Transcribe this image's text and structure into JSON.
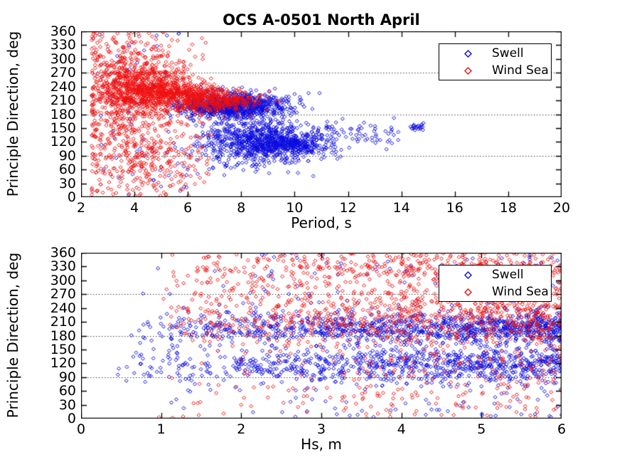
{
  "figure_title": "OCS A-0501 North April",
  "colors": {
    "swell": "#0b0be0",
    "wind_sea": "#f01010",
    "axis": "#000000",
    "grid": "#404040",
    "background": "#ffffff",
    "text": "#000000"
  },
  "legend": {
    "items": [
      {
        "label": "Swell",
        "series": "swell"
      },
      {
        "label": "Wind Sea",
        "series": "wind_sea"
      }
    ],
    "position": "upper-right"
  },
  "marker": {
    "shape": "open-diamond",
    "size": 5,
    "stroke_width": 1
  },
  "chart_data": [
    {
      "type": "scatter",
      "title": "OCS A-0501 North April",
      "xlabel": "Period, s",
      "ylabel": "Principle Direction, deg",
      "xlim": [
        2,
        20
      ],
      "ylim": [
        0,
        360
      ],
      "xticks": [
        2,
        4,
        6,
        8,
        10,
        12,
        14,
        16,
        18,
        20
      ],
      "yticks": [
        0,
        30,
        60,
        90,
        120,
        150,
        180,
        210,
        240,
        270,
        300,
        330,
        360
      ],
      "grid_y": [
        90,
        180,
        270
      ],
      "grid_style": "dotted",
      "legend": [
        "Swell",
        "Wind Sea"
      ],
      "series": [
        {
          "name": "Swell",
          "color_key": "swell",
          "clusters": [
            {
              "n": 850,
              "x": {
                "dist": "normal",
                "mean": 7.7,
                "sd": 1.0,
                "min": 5.2,
                "max": 10.8
              },
              "y": {
                "dist": "normal",
                "mean": 199,
                "sd": 13,
                "min": 2,
                "max": 358
              }
            },
            {
              "n": 620,
              "x": {
                "dist": "normal",
                "mean": 8.7,
                "sd": 1.1,
                "min": 6.0,
                "max": 11.8
              },
              "y": {
                "dist": "normal",
                "mean": 122,
                "sd": 23,
                "min": 2,
                "max": 358
              }
            },
            {
              "n": 300,
              "x": {
                "dist": "normal",
                "mean": 9.7,
                "sd": 0.9,
                "min": 7.5,
                "max": 12.2
              },
              "y": {
                "dist": "normal",
                "mean": 112,
                "sd": 13,
                "min": 2,
                "max": 358
              }
            },
            {
              "n": 200,
              "x": {
                "dist": "normal",
                "mean": 7.9,
                "sd": 1.2,
                "min": 5.5,
                "max": 11.0
              },
              "y": {
                "dist": "uniform",
                "min": 45,
                "max": 240
              }
            },
            {
              "n": 70,
              "x": {
                "dist": "uniform",
                "min": 10.8,
                "max": 13.9
              },
              "y": {
                "dist": "normal",
                "mean": 140,
                "sd": 13,
                "min": 60,
                "max": 240
              }
            },
            {
              "n": 22,
              "x": {
                "dist": "uniform",
                "min": 14.3,
                "max": 14.85
              },
              "y": {
                "dist": "normal",
                "mean": 152,
                "sd": 4,
                "min": 100,
                "max": 200
              }
            },
            {
              "n": 60,
              "x": {
                "dist": "uniform",
                "min": 2.6,
                "max": 6.0
              },
              "y": {
                "dist": "uniform",
                "min": 1,
                "max": 359
              }
            }
          ]
        },
        {
          "name": "Wind Sea",
          "color_key": "wind_sea",
          "clusters": [
            {
              "n": 420,
              "x": {
                "dist": "normal",
                "mean": 3.7,
                "sd": 0.7,
                "min": 2.4,
                "max": 6.2
              },
              "y": {
                "dist": "normal",
                "mean": 232,
                "sd": 48,
                "min": 2,
                "max": 358
              }
            },
            {
              "n": 560,
              "x": {
                "dist": "normal",
                "mean": 4.7,
                "sd": 0.8,
                "min": 2.6,
                "max": 7.2
              },
              "y": {
                "dist": "normal",
                "mean": 236,
                "sd": 24,
                "min": 2,
                "max": 358
              }
            },
            {
              "n": 360,
              "x": {
                "dist": "normal",
                "mean": 6.0,
                "sd": 0.9,
                "min": 3.6,
                "max": 8.8
              },
              "y": {
                "dist": "normal",
                "mean": 219,
                "sd": 15,
                "min": 2,
                "max": 358
              }
            },
            {
              "n": 240,
              "x": {
                "dist": "normal",
                "mean": 7.3,
                "sd": 0.9,
                "min": 5.2,
                "max": 9.6
              },
              "y": {
                "dist": "normal",
                "mean": 209,
                "sd": 11,
                "min": 2,
                "max": 358
              }
            },
            {
              "n": 450,
              "x": {
                "dist": "ramp",
                "min": 2.4,
                "max": 6.8,
                "power": 1.6
              },
              "y": {
                "dist": "uniform",
                "min": 1,
                "max": 359
              }
            },
            {
              "n": 190,
              "x": {
                "dist": "normal",
                "mean": 4.4,
                "sd": 1.0,
                "min": 2.5,
                "max": 7.0
              },
              "y": {
                "dist": "normal",
                "mean": 92,
                "sd": 38,
                "min": 2,
                "max": 358
              }
            }
          ]
        }
      ]
    },
    {
      "type": "scatter",
      "title": "",
      "xlabel": "Hs, m",
      "ylabel": "Principle Direction, deg",
      "xlim": [
        0,
        6
      ],
      "ylim": [
        0,
        360
      ],
      "xticks": [
        0,
        1,
        2,
        3,
        4,
        5,
        6
      ],
      "yticks": [
        0,
        30,
        60,
        90,
        120,
        150,
        180,
        210,
        240,
        270,
        300,
        330,
        360
      ],
      "grid_y": [
        90,
        180,
        270
      ],
      "grid_style": "dotted",
      "legend": [
        "Swell",
        "Wind Sea"
      ],
      "series": [
        {
          "name": "Swell",
          "color_key": "swell",
          "clusters": [
            {
              "n": 1000,
              "x": {
                "dist": "ramp",
                "min": 0.4,
                "max": 6.0,
                "power": 0.55
              },
              "y": {
                "dist": "normal",
                "mean": 196,
                "sd": 16,
                "min": 2,
                "max": 358
              }
            },
            {
              "n": 850,
              "x": {
                "dist": "ramp",
                "min": 0.4,
                "max": 6.0,
                "power": 0.55
              },
              "y": {
                "dist": "normal",
                "mean": 116,
                "sd": 21,
                "min": 2,
                "max": 358
              }
            },
            {
              "n": 300,
              "x": {
                "dist": "ramp",
                "min": 0.5,
                "max": 6.0,
                "power": 0.6
              },
              "y": {
                "dist": "uniform",
                "min": 1,
                "max": 359
              }
            }
          ]
        },
        {
          "name": "Wind Sea",
          "color_key": "wind_sea",
          "clusters": [
            {
              "n": 650,
              "x": {
                "dist": "ramp",
                "min": 0.9,
                "max": 6.0,
                "power": 0.6
              },
              "y": {
                "dist": "normal",
                "mean": 230,
                "sd": 38,
                "min": 2,
                "max": 358
              }
            },
            {
              "n": 560,
              "x": {
                "dist": "ramp",
                "min": 0.8,
                "max": 6.0,
                "power": 0.6
              },
              "y": {
                "dist": "uniform",
                "min": 1,
                "max": 359
              }
            },
            {
              "n": 340,
              "x": {
                "dist": "ramp",
                "min": 1.0,
                "max": 6.0,
                "power": 0.6
              },
              "y": {
                "dist": "normal",
                "mean": 331,
                "sd": 26,
                "min": 2,
                "max": 359
              }
            }
          ]
        }
      ]
    }
  ]
}
